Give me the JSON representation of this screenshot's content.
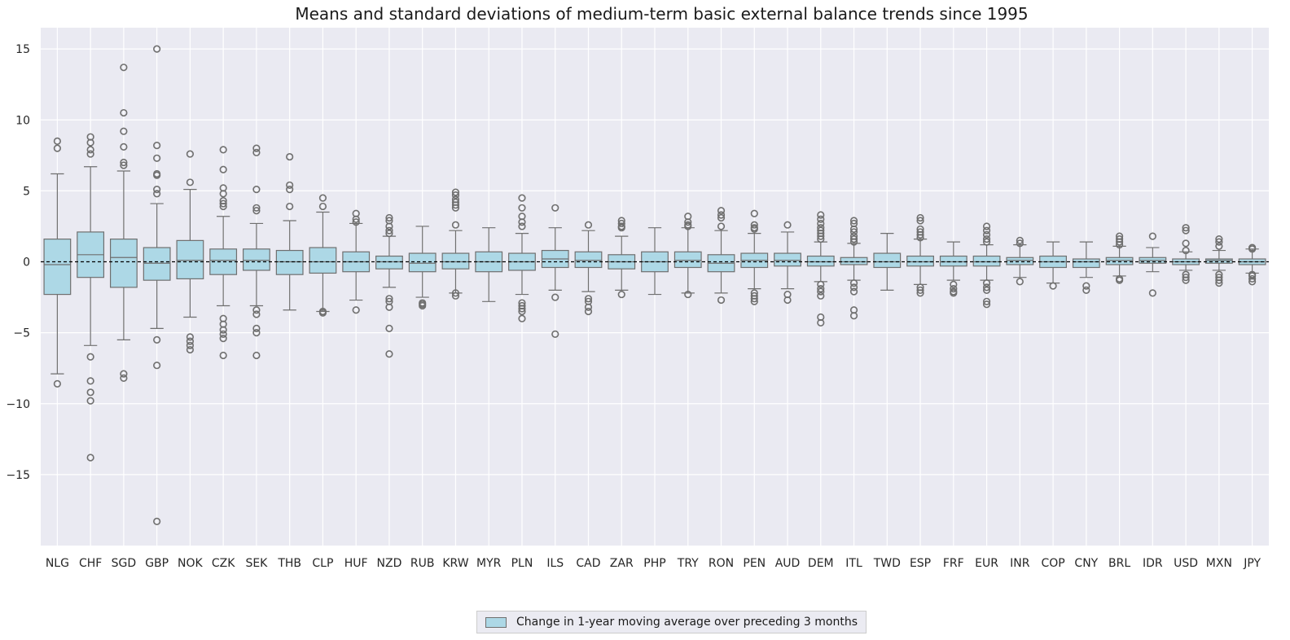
{
  "chart_data": {
    "type": "box",
    "title": "Means and standard deviations of medium-term basic external balance trends since 1995",
    "xlabel": "",
    "ylabel": "",
    "ylim": [
      -20,
      16.5
    ],
    "yticks": [
      15,
      10,
      5,
      0,
      -5,
      -10,
      -15
    ],
    "ytick_labels": [
      "15",
      "10",
      "5",
      "0",
      "−5",
      "−10",
      "−15"
    ],
    "grid": true,
    "reference_line": {
      "y": 0,
      "style": "dashed",
      "color": "#000000"
    },
    "legend": {
      "placement": "bottom-center",
      "entries": [
        "Change in 1-year moving average over preceding 3 months"
      ]
    },
    "box_color": "#add8e6",
    "edge_color": "#6f6f6f",
    "background_color": "#eaeaf2",
    "categories": [
      "NLG",
      "CHF",
      "SGD",
      "GBP",
      "NOK",
      "CZK",
      "SEK",
      "THB",
      "CLP",
      "HUF",
      "NZD",
      "RUB",
      "KRW",
      "MYR",
      "PLN",
      "ILS",
      "CAD",
      "ZAR",
      "PHP",
      "TRY",
      "RON",
      "PEN",
      "AUD",
      "DEM",
      "ITL",
      "TWD",
      "ESP",
      "FRF",
      "EUR",
      "INR",
      "COP",
      "CNY",
      "BRL",
      "IDR",
      "USD",
      "MXN",
      "JPY"
    ],
    "series": [
      {
        "name": "Change in 1-year moving average over preceding 3 months",
        "boxes": [
          {
            "q1": -2.3,
            "median": -0.2,
            "q3": 1.6,
            "whislo": -7.9,
            "whishi": 6.2,
            "fliers": [
              8.5,
              8.0,
              -8.6
            ]
          },
          {
            "q1": -1.1,
            "median": 0.5,
            "q3": 2.1,
            "whislo": -5.9,
            "whishi": 6.7,
            "fliers": [
              8.8,
              8.4,
              7.9,
              7.6,
              -6.7,
              -8.4,
              -9.2,
              -9.8,
              -13.8
            ]
          },
          {
            "q1": -1.8,
            "median": 0.3,
            "q3": 1.6,
            "whislo": -5.5,
            "whishi": 6.4,
            "fliers": [
              13.7,
              10.5,
              9.2,
              8.1,
              7.0,
              6.8,
              -7.9,
              -8.2
            ]
          },
          {
            "q1": -1.3,
            "median": -0.1,
            "q3": 1.0,
            "whislo": -4.7,
            "whishi": 4.1,
            "fliers": [
              15.0,
              8.2,
              7.3,
              6.2,
              6.1,
              5.1,
              4.8,
              -5.5,
              -7.3,
              -18.3
            ]
          },
          {
            "q1": -1.2,
            "median": 0.1,
            "q3": 1.5,
            "whislo": -3.9,
            "whishi": 5.1,
            "fliers": [
              7.6,
              5.6,
              -5.3,
              -5.6,
              -5.9,
              -6.2
            ]
          },
          {
            "q1": -0.9,
            "median": 0.1,
            "q3": 0.9,
            "whislo": -3.1,
            "whishi": 3.2,
            "fliers": [
              7.9,
              6.5,
              5.2,
              4.8,
              4.3,
              4.1,
              3.9,
              -4.0,
              -4.4,
              -4.8,
              -5.1,
              -5.4,
              -6.6
            ]
          },
          {
            "q1": -0.6,
            "median": 0.1,
            "q3": 0.9,
            "whislo": -3.1,
            "whishi": 2.7,
            "fliers": [
              8.0,
              7.7,
              5.1,
              3.8,
              3.6,
              -3.4,
              -3.7,
              -4.7,
              -5.0,
              -6.6
            ]
          },
          {
            "q1": -0.9,
            "median": 0.0,
            "q3": 0.8,
            "whislo": -3.4,
            "whishi": 2.9,
            "fliers": [
              7.4,
              5.4,
              5.1,
              3.9
            ]
          },
          {
            "q1": -0.8,
            "median": 0.0,
            "q3": 1.0,
            "whislo": -3.5,
            "whishi": 3.5,
            "fliers": [
              4.5,
              3.9,
              -3.5,
              -3.6
            ]
          },
          {
            "q1": -0.7,
            "median": 0.0,
            "q3": 0.7,
            "whislo": -2.7,
            "whishi": 2.7,
            "fliers": [
              3.4,
              3.0,
              2.8,
              -3.4
            ]
          },
          {
            "q1": -0.5,
            "median": 0.0,
            "q3": 0.4,
            "whislo": -1.8,
            "whishi": 1.8,
            "fliers": [
              3.1,
              2.9,
              2.5,
              2.2,
              2.0,
              -2.6,
              -2.8,
              -3.2,
              -4.7,
              -6.5
            ]
          },
          {
            "q1": -0.7,
            "median": -0.1,
            "q3": 0.6,
            "whislo": -2.5,
            "whishi": 2.5,
            "fliers": [
              -2.9,
              -3.0,
              -3.1
            ]
          },
          {
            "q1": -0.5,
            "median": 0.0,
            "q3": 0.6,
            "whislo": -2.2,
            "whishi": 2.2,
            "fliers": [
              4.9,
              4.7,
              4.4,
              4.2,
              4.0,
              3.8,
              2.6,
              -2.2,
              -2.4
            ]
          },
          {
            "q1": -0.7,
            "median": 0.0,
            "q3": 0.7,
            "whislo": -2.8,
            "whishi": 2.4,
            "fliers": []
          },
          {
            "q1": -0.6,
            "median": 0.0,
            "q3": 0.6,
            "whislo": -2.3,
            "whishi": 2.0,
            "fliers": [
              4.5,
              3.8,
              3.2,
              2.8,
              2.5,
              -2.9,
              -3.1,
              -3.3,
              -3.5,
              -4.0
            ]
          },
          {
            "q1": -0.4,
            "median": 0.2,
            "q3": 0.8,
            "whislo": -2.0,
            "whishi": 2.4,
            "fliers": [
              3.8,
              -2.5,
              -5.1
            ]
          },
          {
            "q1": -0.4,
            "median": 0.1,
            "q3": 0.7,
            "whislo": -2.1,
            "whishi": 2.2,
            "fliers": [
              2.6,
              -2.6,
              -2.8,
              -3.2,
              -3.5
            ]
          },
          {
            "q1": -0.5,
            "median": 0.0,
            "q3": 0.5,
            "whislo": -2.0,
            "whishi": 1.8,
            "fliers": [
              2.9,
              2.7,
              2.5,
              2.4,
              -2.3
            ]
          },
          {
            "q1": -0.7,
            "median": 0.0,
            "q3": 0.7,
            "whislo": -2.3,
            "whishi": 2.4,
            "fliers": []
          },
          {
            "q1": -0.4,
            "median": 0.1,
            "q3": 0.7,
            "whislo": -2.2,
            "whishi": 2.4,
            "fliers": [
              3.2,
              2.8,
              2.6,
              2.5,
              -2.3
            ]
          },
          {
            "q1": -0.7,
            "median": -0.1,
            "q3": 0.5,
            "whislo": -2.2,
            "whishi": 2.2,
            "fliers": [
              3.6,
              3.3,
              3.1,
              2.5,
              -2.7
            ]
          },
          {
            "q1": -0.4,
            "median": 0.1,
            "q3": 0.6,
            "whislo": -1.9,
            "whishi": 2.0,
            "fliers": [
              3.4,
              2.6,
              2.4,
              2.3,
              -2.2,
              -2.4,
              -2.6,
              -2.8
            ]
          },
          {
            "q1": -0.3,
            "median": 0.1,
            "q3": 0.6,
            "whislo": -1.9,
            "whishi": 2.1,
            "fliers": [
              2.6,
              -2.3,
              -2.7
            ]
          },
          {
            "q1": -0.3,
            "median": 0.0,
            "q3": 0.4,
            "whislo": -1.4,
            "whishi": 1.4,
            "fliers": [
              3.3,
              3.0,
              2.7,
              2.4,
              2.2,
              2.0,
              1.8,
              1.6,
              -1.6,
              -1.9,
              -2.1,
              -2.4,
              -3.9,
              -4.3
            ]
          },
          {
            "q1": -0.2,
            "median": 0.0,
            "q3": 0.3,
            "whislo": -1.3,
            "whishi": 1.3,
            "fliers": [
              2.9,
              2.7,
              2.3,
              2.1,
              1.8,
              1.6,
              1.4,
              -1.5,
              -1.8,
              -2.1,
              -3.4,
              -3.8
            ]
          },
          {
            "q1": -0.4,
            "median": 0.0,
            "q3": 0.6,
            "whislo": -2.0,
            "whishi": 2.0,
            "fliers": []
          },
          {
            "q1": -0.3,
            "median": 0.0,
            "q3": 0.4,
            "whislo": -1.6,
            "whishi": 1.6,
            "fliers": [
              3.1,
              2.9,
              2.3,
              2.1,
              1.9,
              1.7,
              -1.8,
              -2.0,
              -2.2
            ]
          },
          {
            "q1": -0.3,
            "median": 0.0,
            "q3": 0.4,
            "whislo": -1.3,
            "whishi": 1.4,
            "fliers": [
              -1.6,
              -1.9,
              -2.1,
              -2.2
            ]
          },
          {
            "q1": -0.3,
            "median": 0.0,
            "q3": 0.4,
            "whislo": -1.3,
            "whishi": 1.2,
            "fliers": [
              2.5,
              2.2,
              1.9,
              1.6,
              1.4,
              -1.5,
              -1.8,
              -2.0,
              -2.8,
              -3.0
            ]
          },
          {
            "q1": -0.2,
            "median": 0.1,
            "q3": 0.3,
            "whislo": -1.1,
            "whishi": 1.2,
            "fliers": [
              1.5,
              1.3,
              -1.4
            ]
          },
          {
            "q1": -0.4,
            "median": 0.0,
            "q3": 0.4,
            "whislo": -1.5,
            "whishi": 1.4,
            "fliers": [
              -1.7
            ]
          },
          {
            "q1": -0.4,
            "median": 0.0,
            "q3": 0.2,
            "whislo": -1.1,
            "whishi": 1.4,
            "fliers": [
              -1.7,
              -2.0
            ]
          },
          {
            "q1": -0.2,
            "median": 0.1,
            "q3": 0.3,
            "whislo": -1.0,
            "whishi": 1.1,
            "fliers": [
              1.8,
              1.6,
              1.4,
              1.2,
              -1.2,
              -1.3
            ]
          },
          {
            "q1": -0.1,
            "median": 0.1,
            "q3": 0.3,
            "whislo": -0.7,
            "whishi": 1.0,
            "fliers": [
              1.8,
              -2.2
            ]
          },
          {
            "q1": -0.2,
            "median": 0.0,
            "q3": 0.2,
            "whislo": -0.6,
            "whishi": 0.7,
            "fliers": [
              2.4,
              2.2,
              1.3,
              0.8,
              -0.9,
              -1.1,
              -1.3
            ]
          },
          {
            "q1": -0.1,
            "median": 0.1,
            "q3": 0.2,
            "whislo": -0.6,
            "whishi": 0.8,
            "fliers": [
              1.6,
              1.4,
              1.1,
              -0.9,
              -1.1,
              -1.3,
              -1.5
            ]
          },
          {
            "q1": -0.2,
            "median": 0.0,
            "q3": 0.2,
            "whislo": -0.8,
            "whishi": 0.9,
            "fliers": [
              1.0,
              0.9,
              -0.9,
              -1.0,
              -1.2,
              -1.4
            ]
          }
        ]
      }
    ]
  }
}
